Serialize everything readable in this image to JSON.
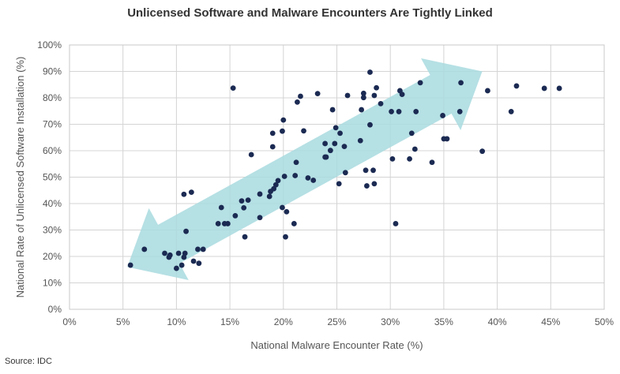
{
  "title": "Unlicensed Software and Malware Encounters Are Tightly Linked",
  "source": "Source: IDC",
  "colors": {
    "points": "#1b2a52",
    "arrow": "#a8dadf",
    "grid": "#d4d4d4",
    "text": "#555555"
  },
  "chart_data": {
    "type": "scatter",
    "title": "Unlicensed Software and Malware Encounters Are Tightly Linked",
    "xlabel": "National Malware Encounter Rate (%)",
    "ylabel": "National Rate of Unlicensed Software Installation (%)",
    "xlim": [
      0,
      50
    ],
    "ylim": [
      0,
      100
    ],
    "x_ticks": [
      "0%",
      "5%",
      "10%",
      "15%",
      "20%",
      "25%",
      "30%",
      "35%",
      "40%",
      "45%",
      "50%"
    ],
    "y_ticks": [
      "0%",
      "10%",
      "20%",
      "30%",
      "40%",
      "50%",
      "60%",
      "70%",
      "80%",
      "90%",
      "100%"
    ],
    "grid": true,
    "annotation": "double-headed arrow indicating positive correlation",
    "points": [
      [
        5.7,
        16.7
      ],
      [
        7.0,
        22.7
      ],
      [
        8.9,
        21.2
      ],
      [
        9.3,
        19.7
      ],
      [
        9.4,
        20.5
      ],
      [
        10.0,
        15.5
      ],
      [
        10.2,
        21.2
      ],
      [
        10.5,
        16.7
      ],
      [
        10.7,
        19.7
      ],
      [
        10.8,
        21.2
      ],
      [
        10.7,
        43.5
      ],
      [
        10.9,
        29.5
      ],
      [
        11.4,
        44.3
      ],
      [
        11.6,
        18.2
      ],
      [
        12.0,
        22.7
      ],
      [
        12.1,
        17.4
      ],
      [
        12.5,
        22.7
      ],
      [
        13.9,
        32.4
      ],
      [
        14.2,
        38.5
      ],
      [
        14.5,
        32.4
      ],
      [
        14.8,
        32.4
      ],
      [
        15.3,
        83.7
      ],
      [
        15.5,
        35.4
      ],
      [
        16.1,
        41.0
      ],
      [
        16.3,
        38.4
      ],
      [
        16.4,
        27.4
      ],
      [
        16.7,
        41.3
      ],
      [
        17.0,
        58.5
      ],
      [
        17.8,
        34.7
      ],
      [
        17.8,
        43.6
      ],
      [
        18.7,
        42.7
      ],
      [
        18.8,
        44.6
      ],
      [
        19.0,
        61.5
      ],
      [
        19.0,
        66.6
      ],
      [
        19.1,
        45.6
      ],
      [
        19.3,
        47.1
      ],
      [
        19.5,
        48.7
      ],
      [
        19.9,
        67.4
      ],
      [
        19.9,
        38.5
      ],
      [
        20.0,
        71.6
      ],
      [
        20.1,
        50.3
      ],
      [
        20.2,
        27.4
      ],
      [
        20.3,
        36.9
      ],
      [
        21.0,
        32.4
      ],
      [
        21.1,
        50.6
      ],
      [
        21.2,
        55.6
      ],
      [
        21.3,
        78.4
      ],
      [
        21.6,
        80.6
      ],
      [
        21.9,
        67.5
      ],
      [
        22.3,
        49.7
      ],
      [
        22.8,
        48.8
      ],
      [
        23.2,
        81.6
      ],
      [
        23.9,
        57.6
      ],
      [
        23.9,
        62.7
      ],
      [
        24.0,
        57.6
      ],
      [
        24.4,
        60.1
      ],
      [
        24.6,
        75.5
      ],
      [
        24.8,
        62.7
      ],
      [
        24.9,
        68.7
      ],
      [
        25.2,
        47.5
      ],
      [
        25.3,
        66.6
      ],
      [
        25.7,
        61.6
      ],
      [
        25.8,
        51.7
      ],
      [
        26.0,
        80.9
      ],
      [
        27.2,
        63.8
      ],
      [
        27.3,
        75.5
      ],
      [
        27.5,
        80.1
      ],
      [
        27.5,
        81.7
      ],
      [
        27.7,
        52.6
      ],
      [
        27.8,
        46.7
      ],
      [
        28.1,
        69.8
      ],
      [
        28.1,
        89.7
      ],
      [
        28.4,
        52.6
      ],
      [
        28.5,
        80.9
      ],
      [
        28.5,
        47.5
      ],
      [
        28.7,
        83.8
      ],
      [
        29.1,
        77.8
      ],
      [
        30.1,
        74.8
      ],
      [
        30.2,
        56.9
      ],
      [
        30.5,
        32.4
      ],
      [
        30.8,
        74.8
      ],
      [
        30.9,
        82.7
      ],
      [
        31.1,
        81.3
      ],
      [
        31.8,
        56.9
      ],
      [
        32.0,
        66.6
      ],
      [
        32.3,
        60.6
      ],
      [
        32.4,
        74.8
      ],
      [
        32.8,
        85.7
      ],
      [
        33.9,
        55.6
      ],
      [
        34.9,
        73.3
      ],
      [
        35.0,
        64.5
      ],
      [
        35.3,
        64.5
      ],
      [
        36.5,
        74.8
      ],
      [
        36.6,
        85.7
      ],
      [
        38.6,
        59.8
      ],
      [
        39.1,
        82.7
      ],
      [
        41.3,
        74.8
      ],
      [
        41.8,
        84.5
      ],
      [
        44.4,
        83.6
      ],
      [
        45.8,
        83.6
      ]
    ]
  }
}
